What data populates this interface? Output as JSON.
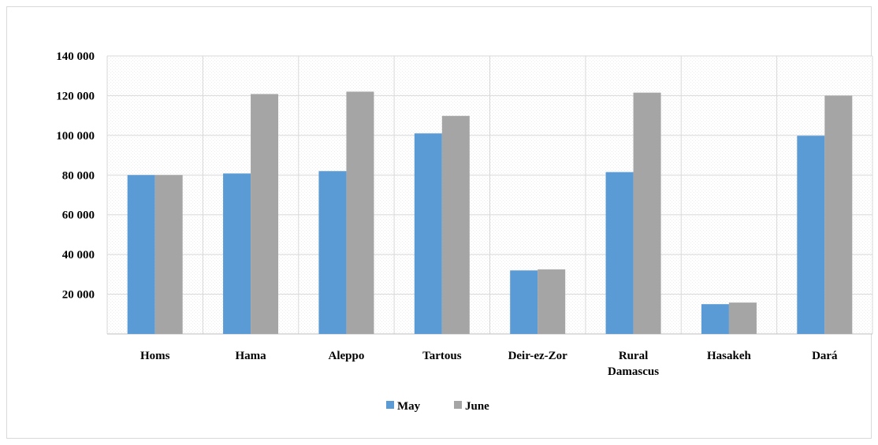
{
  "chart_data": {
    "type": "bar",
    "categories": [
      "Homs",
      "Hama",
      "Aleppo",
      "Tartous",
      "Deir-ez-Zor",
      "Rural Damascus",
      "Hasakeh",
      "Dará"
    ],
    "series": [
      {
        "name": "May",
        "color": "#5b9bd5",
        "values": [
          80000,
          80800,
          82000,
          101000,
          32000,
          81500,
          15000,
          99800
        ]
      },
      {
        "name": "June",
        "color": "#a5a5a5",
        "values": [
          80000,
          120800,
          122000,
          109800,
          32500,
          121500,
          15800,
          120000
        ]
      }
    ],
    "y_ticks": [
      20000,
      40000,
      60000,
      80000,
      100000,
      120000,
      140000
    ],
    "y_tick_labels": [
      "20 000",
      "40 000",
      "60 000",
      "80 000",
      "100 000",
      "120 000",
      "140 000"
    ],
    "ylim": [
      0,
      140000
    ],
    "grid": true,
    "legend": "bottom-center"
  }
}
